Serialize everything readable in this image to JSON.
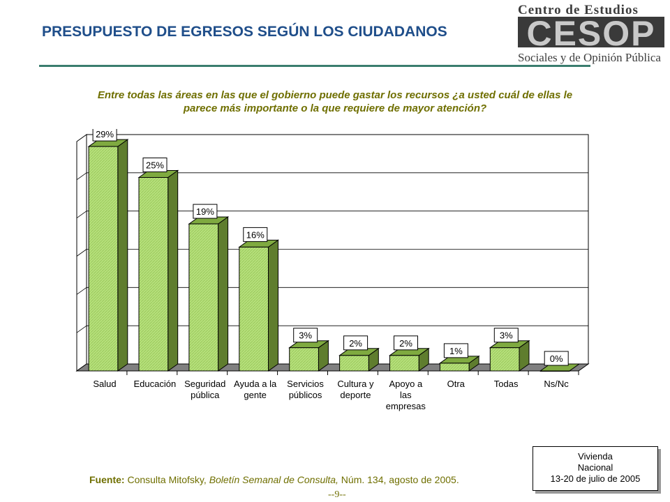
{
  "header": {
    "title": "PRESUPUESTO DE EGRESOS SEGÚN LOS CIUDADANOS",
    "logo": {
      "line1": "Centro de Estudios",
      "acronym": "CESOP",
      "line2": "Sociales y de Opinión Pública"
    }
  },
  "question": {
    "line1": "Entre todas las áreas en las que el gobierno puede gastar los recursos ¿a usted cuál de ellas le",
    "line2": "parece más importante o la que requiere de mayor atención?"
  },
  "chart_data": {
    "type": "bar",
    "categories": [
      "Salud",
      "Educación",
      "Seguridad pública",
      "Ayuda a la gente",
      "Servicios públicos",
      "Cultura y deporte",
      "Apoyo a las empresas",
      "Otra",
      "Todas",
      "Ns/Nc"
    ],
    "category_lines": [
      [
        "Salud"
      ],
      [
        "Educación"
      ],
      [
        "Seguridad",
        "pública"
      ],
      [
        "Ayuda a la",
        "gente"
      ],
      [
        "Servicios",
        "públicos"
      ],
      [
        "Cultura y",
        "deporte"
      ],
      [
        "Apoyo a",
        "las",
        "empresas"
      ],
      [
        "Otra"
      ],
      [
        "Todas"
      ],
      [
        "Ns/Nc"
      ]
    ],
    "values": [
      29,
      25,
      19,
      16,
      3,
      2,
      2,
      1,
      3,
      0
    ],
    "data_labels": [
      "29%",
      "25%",
      "19%",
      "16%",
      "3%",
      "2%",
      "2%",
      "1%",
      "3%",
      "0%"
    ],
    "ylim": [
      0,
      30
    ],
    "grid": true,
    "three_d": true,
    "bar_color": "#b6e07c",
    "bar_side_color": "#5f7d2e",
    "floor_color": "#808080",
    "xlabel": "",
    "ylabel": ""
  },
  "footer": {
    "source_label": "Fuente:",
    "source_text": " Consulta Mitofsky, ",
    "source_italic": "Boletín Semanal de Consulta,",
    "source_tail": " Núm. 134, agosto de 2005.",
    "page_number": "--9--",
    "info_box": {
      "line1": "Vivienda",
      "line2": "Nacional",
      "line3": "13-20 de julio de 2005"
    }
  },
  "colors": {
    "title": "#1f4e8a",
    "accent_text": "#6f6f00",
    "rule": "#3a7d6e"
  }
}
